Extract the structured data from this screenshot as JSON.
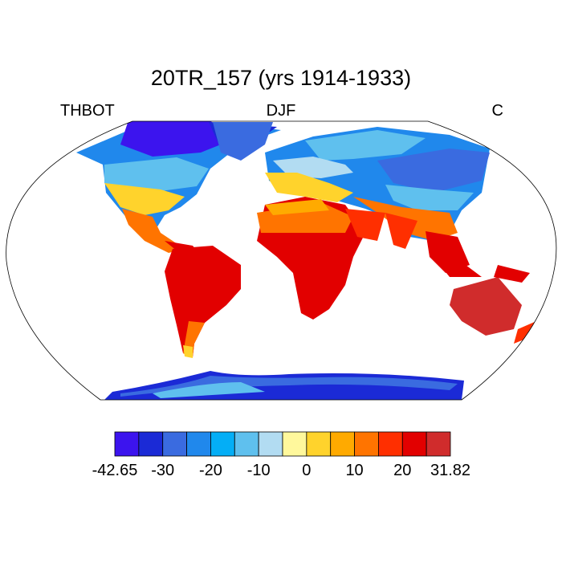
{
  "title": "20TR_157 (yrs 1914-1933)",
  "left_string": "THBOT",
  "center_string": "DJF",
  "right_string": "C",
  "colorbar": {
    "colors": [
      "#3c14ee",
      "#1b2ad6",
      "#3a6be0",
      "#2088ec",
      "#04aef6",
      "#5fc0ee",
      "#b2dcf2",
      "#fff89c",
      "#ffd32c",
      "#ffaa00",
      "#ff7400",
      "#ff2f00",
      "#e20000",
      "#d02c2c"
    ],
    "min_label": "-42.65",
    "max_label": "31.82",
    "tick_labels": [
      "-30",
      "-20",
      "-10",
      "0",
      "10",
      "20"
    ]
  }
}
